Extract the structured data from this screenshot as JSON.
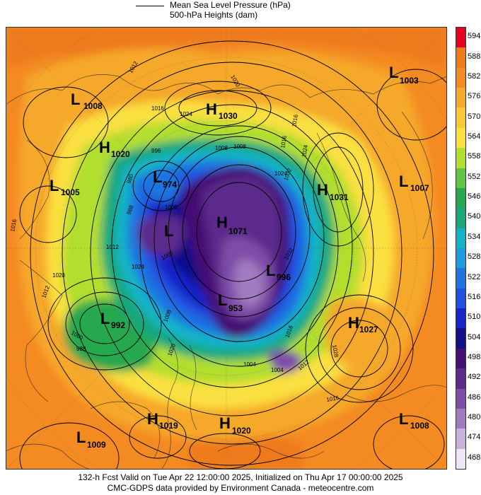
{
  "legend": {
    "pressure_label": "Mean Sea Level Pressure (hPa)",
    "heights_label": "500-hPa Heights (dam)"
  },
  "colorbar": {
    "values": [
      "594",
      "588",
      "582",
      "576",
      "570",
      "564",
      "558",
      "552",
      "546",
      "540",
      "534",
      "528",
      "522",
      "516",
      "510",
      "504",
      "498",
      "492",
      "486",
      "480",
      "474",
      "468"
    ],
    "colors": [
      "#e8001f",
      "#ee7a1c",
      "#f48a22",
      "#f6a82a",
      "#f8c836",
      "#fae040",
      "#b2de2e",
      "#5fc544",
      "#25a850",
      "#18a87c",
      "#14b4c8",
      "#1f9ce0",
      "#1e74e0",
      "#2050e0",
      "#1824c8",
      "#10108c",
      "#441073",
      "#5c2c8c",
      "#7f4ea8",
      "#a07cc0",
      "#c8b2da",
      "#eee6f4"
    ]
  },
  "systems": [
    {
      "type": "L",
      "value": "1008"
    },
    {
      "type": "H",
      "value": "1030"
    },
    {
      "type": "L",
      "value": "1003"
    },
    {
      "type": "H",
      "value": "1020"
    },
    {
      "type": "L",
      "value": "1005"
    },
    {
      "type": "L",
      "value": "974"
    },
    {
      "type": "H",
      "value": "1031"
    },
    {
      "type": "L",
      "value": "1007"
    },
    {
      "type": "H",
      "value": "1071"
    },
    {
      "type": "L",
      "value": ""
    },
    {
      "type": "L",
      "value": "996"
    },
    {
      "type": "L",
      "value": "992"
    },
    {
      "type": "L",
      "value": "953"
    },
    {
      "type": "H",
      "value": "1027"
    },
    {
      "type": "H",
      "value": "1019"
    },
    {
      "type": "H",
      "value": "1020"
    },
    {
      "type": "L",
      "value": "1009"
    },
    {
      "type": "L",
      "value": "1008"
    }
  ],
  "contour_labels": [
    "1012",
    "1020",
    "1016",
    "1024",
    "1016",
    "1024",
    "996",
    "1008",
    "1008",
    "1016",
    "1024",
    "1032",
    "980",
    "988",
    "1000",
    "1024",
    "1016",
    "1020",
    "1012",
    "1000",
    "1032",
    "1012",
    "1000",
    "1008",
    "1016",
    "1028",
    "1004",
    "1004",
    "1012",
    "1016",
    "1020",
    "988"
  ],
  "footer": {
    "line1": "132-h Fcst Valid on Tue Apr 22 12:00:00 2025, Initialized on Thu Apr 17 00:00:00 2025",
    "line2": "CMC-GDPS data provided by Environment Canada - meteocentre.com"
  }
}
